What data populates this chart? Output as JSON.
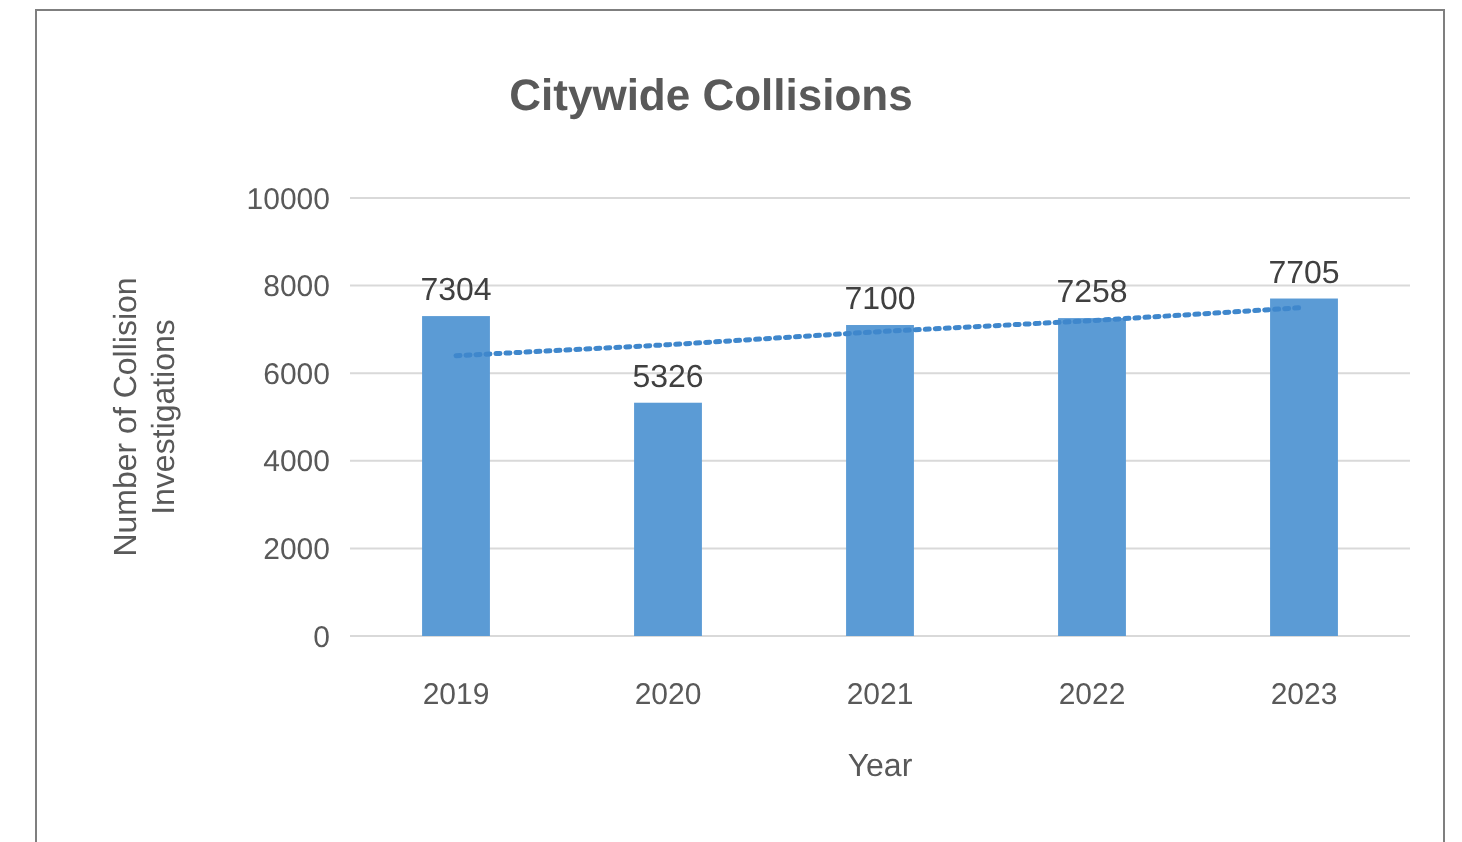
{
  "chart_data": {
    "type": "bar",
    "title": "Citywide Collisions",
    "xlabel": "Year",
    "ylabel": "Number of Collision Investigations",
    "categories": [
      "2019",
      "2020",
      "2021",
      "2022",
      "2023"
    ],
    "series": [
      {
        "color": "#5b9bd5",
        "values": [
          7304,
          5326,
          7100,
          7258,
          7705
        ],
        "value_labels": [
          "7304",
          "5326",
          "7100",
          "7258",
          "7705"
        ]
      },
      {
        "type": "line",
        "color": "#3f87cc",
        "line_style": "dotted",
        "marker": "none",
        "values": [
          6400,
          6650,
          6950,
          7200,
          7500
        ]
      }
    ],
    "ylim": [
      0,
      10000
    ],
    "yticks": [
      0,
      2000,
      4000,
      6000,
      8000,
      10000
    ],
    "grid": "y"
  }
}
